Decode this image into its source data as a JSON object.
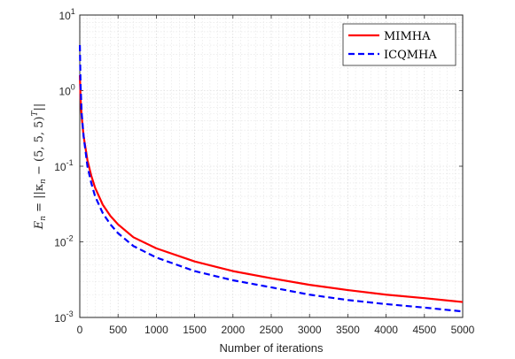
{
  "chart_data": {
    "type": "line",
    "xlabel": "Number of iterations",
    "ylabel": "E_n = ||κ_n − (5, 5, 5)^T ||",
    "ylabel_parts": {
      "main": "E",
      "sub": "n",
      "eq": " = ||κ",
      "sub2": "n",
      "rest": " − (5, 5, 5)",
      "sup": "T",
      "end": "||"
    },
    "xlim": [
      0,
      5000
    ],
    "ylim": [
      0.001,
      10
    ],
    "yscale": "log",
    "grid": true,
    "legend_position": "top-right",
    "x_ticks": [
      "0",
      "500",
      "1000",
      "1500",
      "2000",
      "2500",
      "3000",
      "3500",
      "4000",
      "4500",
      "5000"
    ],
    "y_ticks": [
      {
        "base": "10",
        "exp": "-3"
      },
      {
        "base": "10",
        "exp": "-2"
      },
      {
        "base": "10",
        "exp": "-1"
      },
      {
        "base": "10",
        "exp": "0"
      },
      {
        "base": "10",
        "exp": "1"
      }
    ],
    "series": [
      {
        "name": "MIMHA",
        "color": "#ff0000",
        "style": "solid",
        "x": [
          1,
          10,
          25,
          50,
          100,
          150,
          200,
          300,
          400,
          500,
          700,
          1000,
          1500,
          2000,
          2500,
          3000,
          3500,
          4000,
          4500,
          5000
        ],
        "y": [
          1.6,
          0.8,
          0.45,
          0.25,
          0.12,
          0.075,
          0.052,
          0.031,
          0.022,
          0.017,
          0.0115,
          0.0082,
          0.0055,
          0.0041,
          0.0033,
          0.0027,
          0.0023,
          0.002,
          0.0018,
          0.0016
        ]
      },
      {
        "name": "ICQMHA",
        "color": "#0000ff",
        "style": "dashed",
        "x": [
          1,
          10,
          25,
          50,
          100,
          150,
          200,
          300,
          400,
          500,
          700,
          1000,
          1500,
          2000,
          2500,
          3000,
          3500,
          4000,
          4500,
          5000
        ],
        "y": [
          4.0,
          1.2,
          0.5,
          0.25,
          0.1,
          0.06,
          0.04,
          0.024,
          0.017,
          0.013,
          0.0088,
          0.0062,
          0.0041,
          0.0031,
          0.0025,
          0.002,
          0.0017,
          0.0015,
          0.00135,
          0.0012
        ]
      }
    ]
  }
}
